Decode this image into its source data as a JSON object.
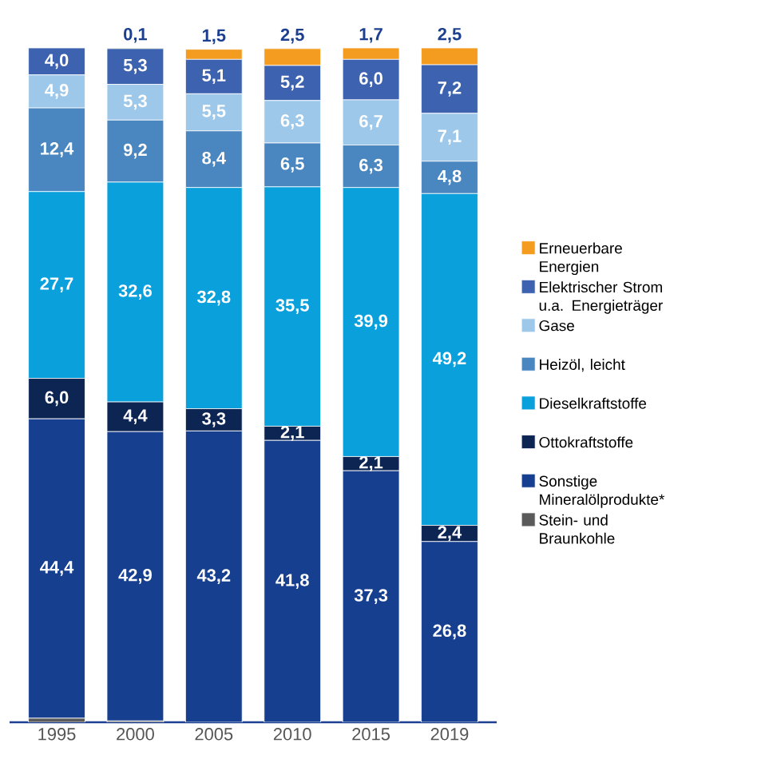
{
  "chart_data": {
    "type": "bar",
    "stacked": true,
    "legend": "right",
    "categories": [
      "1995",
      "2000",
      "2005",
      "2010",
      "2015",
      "2019"
    ],
    "series": [
      {
        "name": "Stein- und Braunkohle",
        "color": "#5a5a5a",
        "values": [
          0.6,
          0.2,
          0,
          0,
          0,
          0
        ],
        "value_labels": [
          null,
          null,
          null,
          null,
          null,
          null
        ]
      },
      {
        "name": "Sonstige Mineralölprodukte*",
        "color": "#173f8f",
        "values": [
          44.4,
          42.9,
          43.2,
          41.8,
          37.3,
          26.8
        ],
        "value_labels": [
          "44,4",
          "42,9",
          "43,2",
          "41,8",
          "37,3",
          "26,8"
        ]
      },
      {
        "name": "Ottokraftstoffe",
        "color": "#0d2553",
        "values": [
          6.0,
          4.4,
          3.3,
          2.1,
          2.1,
          2.4
        ],
        "value_labels": [
          "6,0",
          "4,4",
          "3,3",
          "2,1",
          "2,1",
          "2,4"
        ]
      },
      {
        "name": "Dieselkraftstoffe",
        "color": "#0aa0dc",
        "values": [
          27.7,
          32.6,
          32.8,
          35.5,
          39.9,
          49.2
        ],
        "value_labels": [
          "27,7",
          "32,6",
          "32,8",
          "35,5",
          "39,9",
          "49,2"
        ]
      },
      {
        "name": "Heizöl, leicht",
        "color": "#4a86bf",
        "values": [
          12.4,
          9.2,
          8.4,
          6.5,
          6.3,
          4.8
        ],
        "value_labels": [
          "12,4",
          "9,2",
          "8,4",
          "6,5",
          "6,3",
          "4,8"
        ]
      },
      {
        "name": "Gase",
        "color": "#9dc8ea",
        "values": [
          4.9,
          5.3,
          5.5,
          6.3,
          6.7,
          7.1
        ],
        "value_labels": [
          "4,9",
          "5,3",
          "5,5",
          "6,3",
          "6,7",
          "7,1"
        ]
      },
      {
        "name": "Elektrischer Strom u.a. Energieträger",
        "color": "#3d63b0",
        "values": [
          4.0,
          5.3,
          5.1,
          5.2,
          6.0,
          7.2
        ],
        "value_labels": [
          "4,0",
          "5,3",
          "5,1",
          "5,2",
          "6,0",
          "7,2"
        ]
      },
      {
        "name": "Erneuerbare Energien",
        "color": "#f39c1f",
        "values": [
          0,
          0.1,
          1.5,
          2.5,
          1.7,
          2.5
        ],
        "value_labels": [
          null,
          "0,1",
          "1,5",
          "2,5",
          "1,7",
          "2,5"
        ]
      }
    ]
  }
}
